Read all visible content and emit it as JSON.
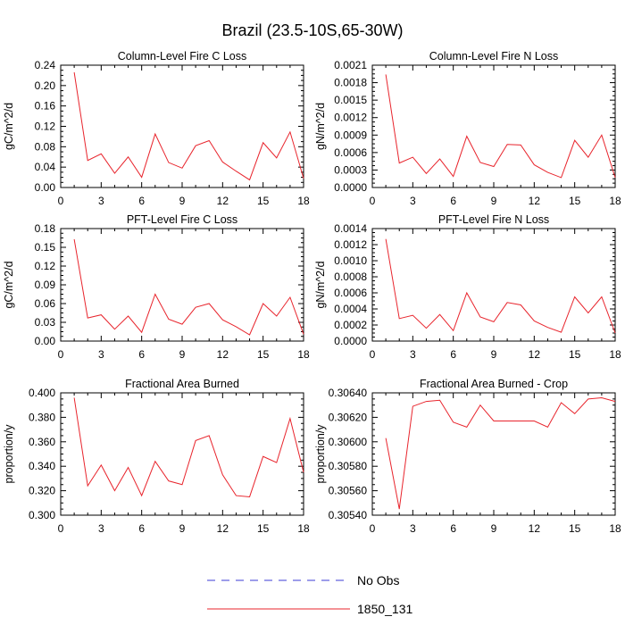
{
  "title": "Brazil (23.5-10S,65-30W)",
  "colors": {
    "model": "#e8242c",
    "obs": "#3b3bd6"
  },
  "legend": [
    {
      "label": "No Obs",
      "style": "dashed",
      "color": "#3b3bd6"
    },
    {
      "label": "1850_131",
      "style": "solid",
      "color": "#e8242c"
    }
  ],
  "chart_data": [
    {
      "type": "line",
      "title": "Column-Level Fire C Loss",
      "ylabel": "gC/m^2/d",
      "xlim": [
        0,
        18
      ],
      "ylim": [
        0,
        0.24
      ],
      "xticks": [
        "0",
        "3",
        "6",
        "9",
        "12",
        "15",
        "18"
      ],
      "yticks": [
        "0.00",
        "0.04",
        "0.08",
        "0.12",
        "0.16",
        "0.20",
        "0.24"
      ],
      "series": [
        {
          "name": "1850_131",
          "x": [
            1,
            2,
            3,
            4,
            5,
            6,
            7,
            8,
            9,
            10,
            11,
            12,
            13,
            14,
            15,
            16,
            17,
            18
          ],
          "values": [
            0.226,
            0.053,
            0.066,
            0.028,
            0.06,
            0.02,
            0.105,
            0.049,
            0.038,
            0.082,
            0.092,
            0.05,
            0.032,
            0.015,
            0.088,
            0.058,
            0.109,
            0.018
          ]
        }
      ]
    },
    {
      "type": "line",
      "title": "Column-Level Fire N Loss",
      "ylabel": "gN/m^2/d",
      "xlim": [
        0,
        18
      ],
      "ylim": [
        0,
        0.0021
      ],
      "xticks": [
        "0",
        "3",
        "6",
        "9",
        "12",
        "15",
        "18"
      ],
      "yticks": [
        "0.0000",
        "0.0003",
        "0.0006",
        "0.0009",
        "0.0012",
        "0.0015",
        "0.0018",
        "0.0021"
      ],
      "series": [
        {
          "name": "1850_131",
          "x": [
            1,
            2,
            3,
            4,
            5,
            6,
            7,
            8,
            9,
            10,
            11,
            12,
            13,
            14,
            15,
            16,
            17,
            18
          ],
          "values": [
            0.00194,
            0.00042,
            0.00052,
            0.00024,
            0.00049,
            0.00019,
            0.00088,
            0.00043,
            0.00036,
            0.00074,
            0.00073,
            0.00039,
            0.00026,
            0.00017,
            0.00081,
            0.00052,
            0.0009,
            0.00017
          ]
        }
      ]
    },
    {
      "type": "line",
      "title": "PFT-Level Fire C Loss",
      "ylabel": "gC/m^2/d",
      "xlim": [
        0,
        18
      ],
      "ylim": [
        0,
        0.18
      ],
      "xticks": [
        "0",
        "3",
        "6",
        "9",
        "12",
        "15",
        "18"
      ],
      "yticks": [
        "0.00",
        "0.03",
        "0.06",
        "0.09",
        "0.12",
        "0.15",
        "0.18"
      ],
      "series": [
        {
          "name": "1850_131",
          "x": [
            1,
            2,
            3,
            4,
            5,
            6,
            7,
            8,
            9,
            10,
            11,
            12,
            13,
            14,
            15,
            16,
            17,
            18
          ],
          "values": [
            0.163,
            0.037,
            0.042,
            0.019,
            0.04,
            0.014,
            0.075,
            0.035,
            0.027,
            0.054,
            0.06,
            0.034,
            0.023,
            0.01,
            0.06,
            0.04,
            0.07,
            0.011
          ]
        }
      ]
    },
    {
      "type": "line",
      "title": "PFT-Level Fire N Loss",
      "ylabel": "gN/m^2/d",
      "xlim": [
        0,
        18
      ],
      "ylim": [
        0,
        0.0014
      ],
      "xticks": [
        "0",
        "3",
        "6",
        "9",
        "12",
        "15",
        "18"
      ],
      "yticks": [
        "0.0000",
        "0.0002",
        "0.0004",
        "0.0006",
        "0.0008",
        "0.0010",
        "0.0012",
        "0.0014"
      ],
      "series": [
        {
          "name": "1850_131",
          "x": [
            1,
            2,
            3,
            4,
            5,
            6,
            7,
            8,
            9,
            10,
            11,
            12,
            13,
            14,
            15,
            16,
            17,
            18
          ],
          "values": [
            0.00127,
            0.00028,
            0.00032,
            0.00016,
            0.00033,
            0.00013,
            0.0006,
            0.0003,
            0.00024,
            0.00048,
            0.00045,
            0.00025,
            0.00017,
            0.00011,
            0.00055,
            0.00035,
            0.00055,
            0.0001
          ]
        }
      ]
    },
    {
      "type": "line",
      "title": "Fractional Area Burned",
      "ylabel": "proportion/y",
      "xlim": [
        0,
        18
      ],
      "ylim": [
        0.3,
        0.4
      ],
      "xticks": [
        "0",
        "3",
        "6",
        "9",
        "12",
        "15",
        "18"
      ],
      "yticks": [
        "0.300",
        "0.320",
        "0.340",
        "0.360",
        "0.380",
        "0.400"
      ],
      "series": [
        {
          "name": "1850_131",
          "x": [
            1,
            2,
            3,
            4,
            5,
            6,
            7,
            8,
            9,
            10,
            11,
            12,
            13,
            14,
            15,
            16,
            17,
            18
          ],
          "values": [
            0.396,
            0.324,
            0.341,
            0.32,
            0.339,
            0.316,
            0.344,
            0.328,
            0.325,
            0.361,
            0.365,
            0.333,
            0.316,
            0.315,
            0.348,
            0.343,
            0.379,
            0.335
          ]
        }
      ]
    },
    {
      "type": "line",
      "title": "Fractional Area Burned - Crop",
      "ylabel": "proportion/y",
      "xlim": [
        0,
        18
      ],
      "ylim": [
        0.3054,
        0.3064
      ],
      "xticks": [
        "0",
        "3",
        "6",
        "9",
        "12",
        "15",
        "18"
      ],
      "yticks": [
        "0.30540",
        "0.30560",
        "0.30580",
        "0.30600",
        "0.30620",
        "0.30640"
      ],
      "series": [
        {
          "name": "1850_131",
          "x": [
            1,
            2,
            3,
            4,
            5,
            6,
            7,
            8,
            9,
            10,
            11,
            12,
            13,
            14,
            15,
            16,
            17,
            18
          ],
          "values": [
            0.30603,
            0.30545,
            0.30629,
            0.30633,
            0.30634,
            0.30616,
            0.30612,
            0.3063,
            0.30617,
            0.30617,
            0.30617,
            0.30617,
            0.30612,
            0.30632,
            0.30623,
            0.30635,
            0.30636,
            0.30633
          ]
        }
      ]
    }
  ]
}
